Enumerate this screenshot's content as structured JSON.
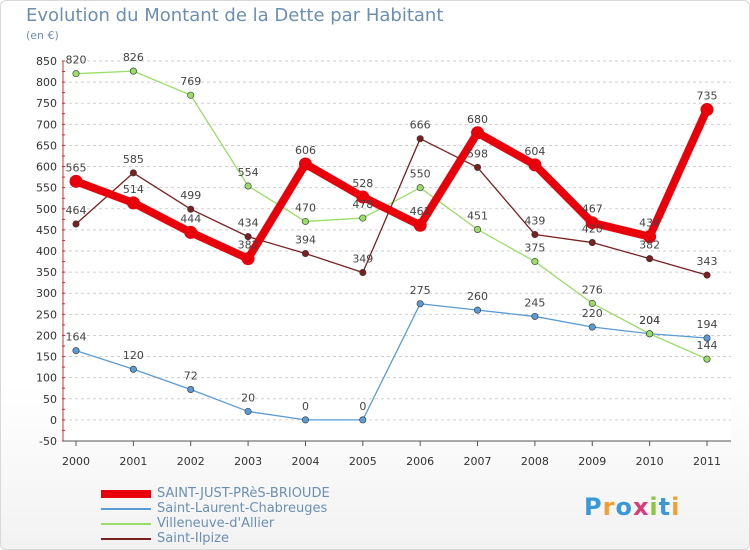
{
  "title": "Evolution du Montant de la Dette par Habitant",
  "unit_label": "(en €)",
  "logo_text": "Proxiti",
  "chart_data": {
    "type": "line",
    "title": "Evolution du Montant de la Dette par Habitant",
    "ylabel": "(en €)",
    "x": [
      "2000",
      "2001",
      "2002",
      "2003",
      "2004",
      "2005",
      "2006",
      "2007",
      "2008",
      "2009",
      "2010",
      "2011"
    ],
    "ylim": [
      -50,
      850
    ],
    "yticks": [
      -50,
      0,
      50,
      100,
      150,
      200,
      250,
      300,
      350,
      400,
      450,
      500,
      550,
      600,
      650,
      700,
      750,
      800,
      850
    ],
    "grid": "horizontal dashed",
    "legend": "bottom-left",
    "series": [
      {
        "name": "SAINT-JUST-PRèS-BRIOUDE",
        "color": "#e8000b",
        "values": [
          565,
          514,
          444,
          382,
          606,
          528,
          461,
          680,
          604,
          467,
          434,
          735
        ],
        "labels": [
          "565",
          "514",
          "444",
          "382",
          "606",
          "528",
          "461",
          "680",
          "604",
          "467",
          "434",
          "735"
        ]
      },
      {
        "name": "Saint-Laurent-Chabreuges",
        "color": "#5b9bd5",
        "values": [
          164,
          120,
          72,
          20,
          0,
          0,
          275,
          260,
          245,
          220,
          204,
          194
        ],
        "labels": [
          "164",
          "120",
          "72",
          "20",
          "0",
          "0",
          "275",
          "260",
          "245",
          "220",
          "204",
          "194"
        ]
      },
      {
        "name": "Villeneuve-d'Allier",
        "color": "#99dd66",
        "values": [
          820,
          826,
          769,
          554,
          470,
          478,
          550,
          451,
          375,
          276,
          204,
          144
        ],
        "labels": [
          "820",
          "826",
          "769",
          "554",
          "470",
          "478",
          "550",
          "451",
          "375",
          "276",
          "204",
          "144"
        ]
      },
      {
        "name": "Saint-Ilpize",
        "color": "#7a2020",
        "values": [
          464,
          585,
          499,
          434,
          394,
          349,
          666,
          598,
          439,
          420,
          382,
          343
        ],
        "labels": [
          "464",
          "585",
          "499",
          "434",
          "394",
          "349",
          "666",
          "598",
          "439",
          "420",
          "382",
          "343"
        ]
      }
    ]
  }
}
